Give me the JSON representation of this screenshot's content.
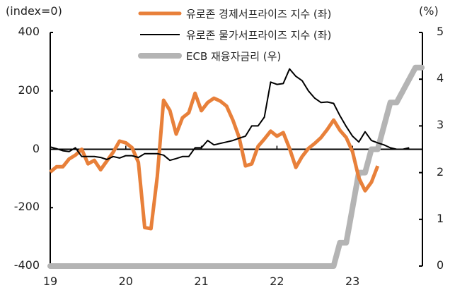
{
  "chart_data": {
    "type": "line",
    "title": "",
    "xlabel": "",
    "ylabel_left": "(index=0)",
    "ylabel_right": "(%)",
    "ylim_left": [
      -400,
      400
    ],
    "ylim_right": [
      0,
      5
    ],
    "yticks_left": [
      "400",
      "200",
      "0",
      "-200",
      "-400"
    ],
    "yticks_right": [
      "5",
      "4",
      "3",
      "2",
      "1",
      "0"
    ],
    "x_tick_labels": [
      "19",
      "20",
      "21",
      "22",
      "23"
    ],
    "x_start": "2019-01",
    "x_freq": "monthly",
    "legend_position": "top-center",
    "grid": false,
    "series": [
      {
        "name": "유로존 경제서프라이즈 지수 (좌)",
        "axis": "left",
        "color": "#E8803A",
        "width": 5,
        "values": [
          -78,
          -60,
          -60,
          -33,
          -20,
          0,
          -50,
          -38,
          -70,
          -40,
          -10,
          28,
          22,
          5,
          -45,
          -268,
          -272,
          -93,
          168,
          133,
          52,
          108,
          125,
          192,
          132,
          160,
          175,
          165,
          148,
          100,
          40,
          -57,
          -50,
          10,
          35,
          62,
          45,
          57,
          3,
          -62,
          -25,
          3,
          20,
          40,
          68,
          100,
          65,
          40,
          -8,
          -98,
          -142,
          -113,
          -57
        ]
      },
      {
        "name": "유로존 물가서프라이즈 지수 (좌)",
        "axis": "left",
        "color": "#000000",
        "width": 2,
        "values": [
          8,
          2,
          -5,
          -8,
          5,
          -25,
          -25,
          -25,
          -28,
          -35,
          -25,
          -30,
          -22,
          -22,
          -28,
          -15,
          -15,
          -15,
          -20,
          -38,
          -32,
          -25,
          -25,
          5,
          5,
          30,
          15,
          20,
          25,
          30,
          38,
          45,
          80,
          80,
          110,
          230,
          222,
          225,
          275,
          250,
          235,
          200,
          175,
          160,
          162,
          157,
          115,
          78,
          45,
          25,
          60,
          30,
          22,
          15,
          5,
          0,
          0,
          5
        ]
      },
      {
        "name": "ECB 재융자금리 (우)",
        "axis": "right",
        "color": "#B4B4B4",
        "width": 8,
        "values": [
          0,
          0,
          0,
          0,
          0,
          0,
          0,
          0,
          0,
          0,
          0,
          0,
          0,
          0,
          0,
          0,
          0,
          0,
          0,
          0,
          0,
          0,
          0,
          0,
          0,
          0,
          0,
          0,
          0,
          0,
          0,
          0,
          0,
          0,
          0,
          0,
          0,
          0,
          0,
          0,
          0,
          0,
          0,
          0,
          0,
          0,
          0.5,
          0.5,
          1.25,
          2,
          2,
          2.5,
          2.5,
          3,
          3.5,
          3.5,
          3.75,
          4,
          4.25,
          4.25
        ]
      }
    ]
  },
  "axes": {
    "left_label": "(index=0)",
    "right_label": "(%)",
    "left_ticks": [
      {
        "label": "400",
        "value": 400
      },
      {
        "label": "200",
        "value": 200
      },
      {
        "label": "0",
        "value": 0
      },
      {
        "label": "-200",
        "value": -200
      },
      {
        "label": "-400",
        "value": -400
      }
    ],
    "right_ticks": [
      {
        "label": "5",
        "value": 5
      },
      {
        "label": "4",
        "value": 4
      },
      {
        "label": "3",
        "value": 3
      },
      {
        "label": "2",
        "value": 2
      },
      {
        "label": "1",
        "value": 1
      },
      {
        "label": "0",
        "value": 0
      }
    ],
    "x_ticks": [
      {
        "label": "19",
        "month": 0
      },
      {
        "label": "20",
        "month": 12
      },
      {
        "label": "21",
        "month": 24
      },
      {
        "label": "22",
        "month": 36
      },
      {
        "label": "23",
        "month": 48
      }
    ]
  },
  "legend": {
    "items": [
      {
        "label": "유로존 경제서프라이즈 지수 (좌)",
        "color": "#E8803A",
        "thickness": 5
      },
      {
        "label": "유로존 물가서프라이즈 지수 (좌)",
        "color": "#000000",
        "thickness": 2
      },
      {
        "label": "ECB 재융자금리 (우)",
        "color": "#B4B4B4",
        "thickness": 8
      }
    ]
  }
}
